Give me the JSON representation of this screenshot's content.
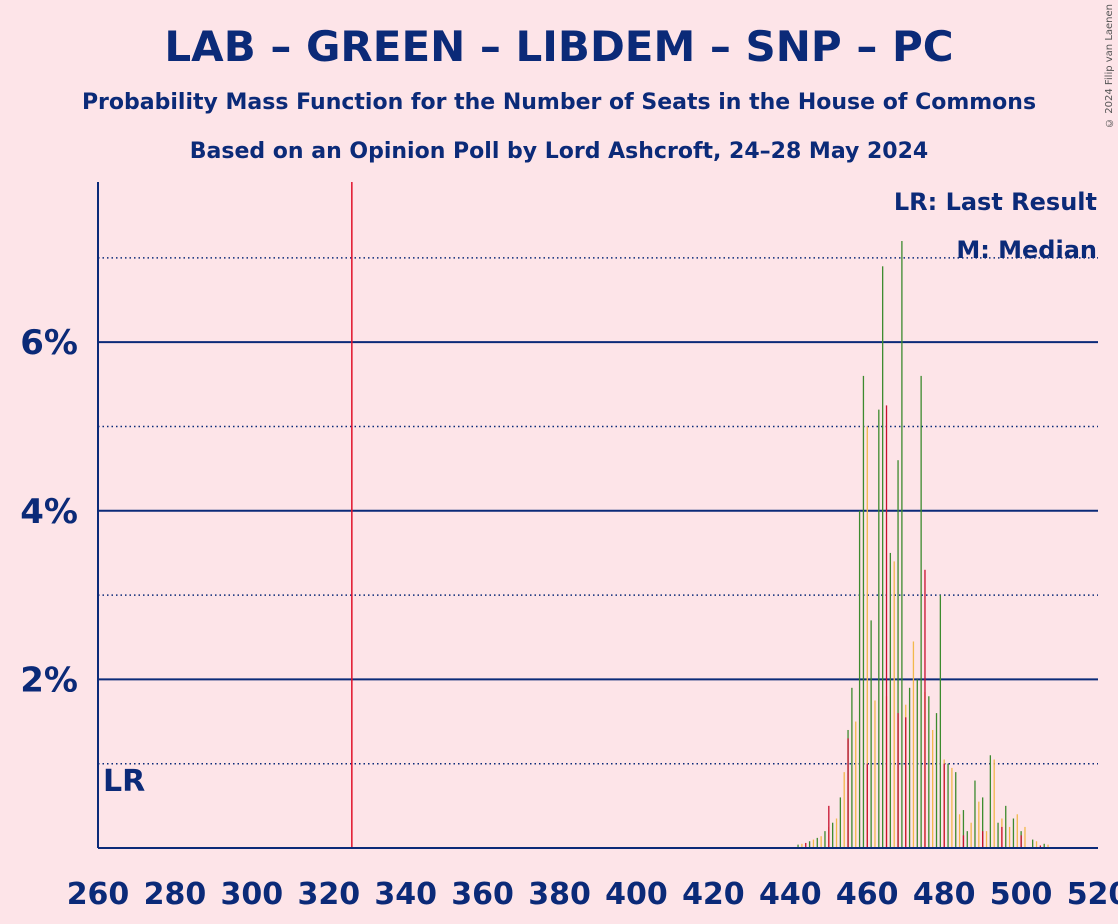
{
  "copyright": "© 2024 Filip van Laenen",
  "chart_data": {
    "type": "bar",
    "title": "LAB – GREEN – LIBDEM – SNP – PC",
    "subtitle": "Probability Mass Function for the Number of Seats in the House of Commons",
    "subtitle2": "Based on an Opinion Poll by Lord Ashcroft, 24–28 May 2024",
    "xlim": [
      260,
      520
    ],
    "ylim": [
      0,
      7.9
    ],
    "x_ticks": [
      260,
      280,
      300,
      320,
      340,
      360,
      380,
      400,
      420,
      440,
      460,
      480,
      500,
      520
    ],
    "y_ticks_major": [
      2,
      4,
      6
    ],
    "y_ticks_major_labels": [
      "2%",
      "4%",
      "6%"
    ],
    "y_ticks_minor": [
      1,
      3,
      5,
      7
    ],
    "majority_line": 326,
    "last_result_label": "LR",
    "legend": [
      "LR: Last Result",
      "M: Median"
    ],
    "colors": {
      "background": "#fde4e8",
      "text": "#0b2a78",
      "majority": "#e0102a",
      "bar_green": "#3c8a2e",
      "bar_yellow": "#f2b84b",
      "bar_red": "#c8102e"
    },
    "series": [
      {
        "color_key": "bar_green",
        "values": [
          [
            442,
            0.04
          ],
          [
            445,
            0.08
          ],
          [
            447,
            0.12
          ],
          [
            449,
            0.2
          ],
          [
            451,
            0.3
          ],
          [
            453,
            0.6
          ],
          [
            455,
            1.4
          ],
          [
            456,
            1.9
          ],
          [
            458,
            4.0
          ],
          [
            459,
            5.6
          ],
          [
            461,
            2.7
          ],
          [
            463,
            5.2
          ],
          [
            464,
            6.9
          ],
          [
            466,
            3.5
          ],
          [
            468,
            4.6
          ],
          [
            469,
            7.2
          ],
          [
            471,
            1.9
          ],
          [
            473,
            2.0
          ],
          [
            474,
            5.6
          ],
          [
            476,
            1.8
          ],
          [
            478,
            1.6
          ],
          [
            479,
            3.0
          ],
          [
            481,
            1.0
          ],
          [
            483,
            0.9
          ],
          [
            485,
            0.45
          ],
          [
            486,
            0.2
          ],
          [
            488,
            0.8
          ],
          [
            490,
            0.6
          ],
          [
            492,
            1.1
          ],
          [
            494,
            0.3
          ],
          [
            496,
            0.5
          ],
          [
            498,
            0.35
          ],
          [
            500,
            0.2
          ],
          [
            503,
            0.1
          ],
          [
            506,
            0.05
          ]
        ]
      },
      {
        "color_key": "bar_yellow",
        "values": [
          [
            443,
            0.05
          ],
          [
            446,
            0.1
          ],
          [
            448,
            0.14
          ],
          [
            450,
            0.25
          ],
          [
            452,
            0.35
          ],
          [
            454,
            0.9
          ],
          [
            457,
            1.5
          ],
          [
            460,
            5.0
          ],
          [
            462,
            1.75
          ],
          [
            465,
            1.8
          ],
          [
            467,
            3.4
          ],
          [
            470,
            1.7
          ],
          [
            472,
            2.45
          ],
          [
            475,
            1.85
          ],
          [
            477,
            1.4
          ],
          [
            480,
            1.05
          ],
          [
            482,
            0.95
          ],
          [
            484,
            0.4
          ],
          [
            487,
            0.3
          ],
          [
            489,
            0.55
          ],
          [
            491,
            0.2
          ],
          [
            493,
            1.05
          ],
          [
            495,
            0.35
          ],
          [
            497,
            0.25
          ],
          [
            499,
            0.4
          ],
          [
            501,
            0.25
          ],
          [
            504,
            0.08
          ],
          [
            507,
            0.04
          ]
        ]
      },
      {
        "color_key": "bar_red",
        "values": [
          [
            444,
            0.06
          ],
          [
            450,
            0.5
          ],
          [
            455,
            1.3
          ],
          [
            460,
            1.0
          ],
          [
            465,
            5.25
          ],
          [
            468,
            1.6
          ],
          [
            470,
            1.55
          ],
          [
            475,
            3.3
          ],
          [
            480,
            1.0
          ],
          [
            485,
            0.15
          ],
          [
            490,
            0.2
          ],
          [
            495,
            0.25
          ],
          [
            500,
            0.15
          ],
          [
            505,
            0.03
          ]
        ]
      }
    ]
  }
}
